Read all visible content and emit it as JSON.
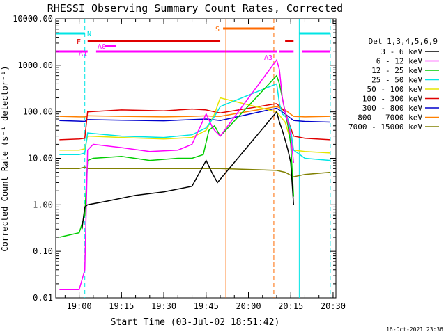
{
  "chart_data": {
    "type": "line",
    "title": "RHESSI Observing Summary Count Rates, Corrected",
    "xlabel": "Start Time (03-Jul-02 18:51:42)",
    "ylabel": "Corrected Count Rate (s⁻¹ detector⁻¹)",
    "y_scale": "log",
    "ylim": [
      0.01,
      10000
    ],
    "xlim": [
      "18:51:42",
      "20:31:00"
    ],
    "y_ticks": [
      "10000.00",
      "1000.00",
      "100.00",
      "10.00",
      "1.00",
      "0.10",
      "0.01"
    ],
    "x_ticks": [
      "19:00",
      "19:15",
      "19:30",
      "19:45",
      "20:00",
      "20:15",
      "20:30"
    ],
    "timestamp": "16-Oct-2021 23:36",
    "legend": {
      "title": "Det 1,3,4,5,6,9",
      "placement": "right",
      "entries": [
        {
          "label": "3 - 6 keV",
          "color": "#000000"
        },
        {
          "label": "6 - 12 keV",
          "color": "#ff00ff"
        },
        {
          "label": "12 - 25 keV",
          "color": "#00cc00"
        },
        {
          "label": "25 - 50 keV",
          "color": "#00e5e5"
        },
        {
          "label": "50 - 100 keV",
          "color": "#e5e500"
        },
        {
          "label": "100 - 300 keV",
          "color": "#e00000"
        },
        {
          "label": "300 - 800 keV",
          "color": "#0000cc"
        },
        {
          "label": "800 - 7000 keV",
          "color": "#ff8000"
        },
        {
          "label": "7000 - 15000 keV",
          "color": "#808000"
        }
      ]
    },
    "flag_bars": [
      {
        "label": "N",
        "color": "#00e5e5",
        "segments": [
          [
            "18:51:42",
            "19:02"
          ],
          [
            "20:18",
            "20:29"
          ]
        ]
      },
      {
        "label": "S",
        "color": "#ff6a00",
        "segments": [
          [
            "19:51",
            "20:09"
          ]
        ]
      },
      {
        "label": "F",
        "color": "#e00000",
        "segments": [
          [
            "19:03",
            "19:50"
          ],
          [
            "20:13",
            "20:16"
          ]
        ]
      },
      {
        "label": "A0",
        "color": "#ff00ff",
        "segments": [
          [
            "19:09",
            "19:13"
          ]
        ]
      },
      {
        "label": "A1",
        "color": "#ff00ff",
        "segments": [
          [
            "18:51:42",
            "19:03"
          ],
          [
            "19:06",
            "20:10"
          ]
        ]
      },
      {
        "label": "A3",
        "color": "#ff00ff",
        "segments": [
          [
            "20:11",
            "20:16"
          ],
          [
            "20:19",
            "20:29"
          ]
        ]
      }
    ],
    "vlines": [
      {
        "time": "19:02",
        "color": "#00e5e5",
        "style": "dashed"
      },
      {
        "time": "19:52",
        "color": "#ff6a00",
        "style": "solid"
      },
      {
        "time": "20:09",
        "color": "#ff6a00",
        "style": "dashed"
      },
      {
        "time": "20:18",
        "color": "#00e5e5",
        "style": "solid"
      },
      {
        "time": "20:29",
        "color": "#00e5e5",
        "style": "dashed"
      }
    ],
    "series": [
      {
        "name": "3 - 6 keV",
        "color": "#000000",
        "x": [
          "19:01",
          "19:02",
          "19:03",
          "19:10",
          "19:20",
          "19:30",
          "19:40",
          "19:45",
          "19:47",
          "19:49",
          "20:10",
          "20:11",
          "20:12",
          "20:13",
          "20:14",
          "20:15",
          "20:16"
        ],
        "y": [
          0.3,
          0.9,
          1.0,
          1.2,
          1.6,
          1.9,
          2.5,
          9.0,
          5.0,
          3.0,
          100,
          60,
          40,
          25,
          15,
          8,
          1.0
        ]
      },
      {
        "name": "6 - 12 keV",
        "color": "#ff00ff",
        "x": [
          "18:53",
          "19:00",
          "19:02",
          "19:03",
          "19:05",
          "19:15",
          "19:25",
          "19:35",
          "19:40",
          "19:45",
          "19:47",
          "19:48",
          "19:50",
          "20:10",
          "20:11",
          "20:12",
          "20:13",
          "20:14",
          "20:15",
          "20:16"
        ],
        "y": [
          0.015,
          0.015,
          0.04,
          15,
          20,
          17,
          14,
          15,
          20,
          90,
          50,
          40,
          30,
          1300,
          800,
          200,
          100,
          60,
          30,
          8
        ]
      },
      {
        "name": "12 - 25 keV",
        "color": "#00cc00",
        "x": [
          "18:53",
          "19:00",
          "19:02",
          "19:03",
          "19:05",
          "19:15",
          "19:25",
          "19:35",
          "19:40",
          "19:44",
          "19:46",
          "19:48",
          "19:50",
          "20:10",
          "20:11",
          "20:12",
          "20:13",
          "20:14",
          "20:15",
          "20:16"
        ],
        "y": [
          0.2,
          0.25,
          0.6,
          9,
          10,
          11,
          9,
          10,
          10,
          12,
          40,
          50,
          30,
          600,
          400,
          200,
          100,
          50,
          20,
          1.5
        ]
      },
      {
        "name": "25 - 50 keV",
        "color": "#00e5e5",
        "x": [
          "18:53",
          "19:00",
          "19:02",
          "19:03",
          "19:15",
          "19:30",
          "19:40",
          "19:45",
          "19:48",
          "19:50",
          "20:10",
          "20:11",
          "20:12",
          "20:13",
          "20:14",
          "20:15",
          "20:16",
          "20:20",
          "20:29"
        ],
        "y": [
          12,
          12,
          13,
          35,
          30,
          28,
          32,
          45,
          80,
          130,
          400,
          150,
          90,
          80,
          70,
          40,
          15,
          10,
          9
        ]
      },
      {
        "name": "50 - 100 keV",
        "color": "#e5e500",
        "x": [
          "18:53",
          "19:00",
          "19:02",
          "19:03",
          "19:15",
          "19:30",
          "19:40",
          "19:45",
          "19:48",
          "19:50",
          "20:10",
          "20:13",
          "20:16",
          "20:20",
          "20:29"
        ],
        "y": [
          15,
          15,
          16,
          30,
          28,
          26,
          28,
          40,
          90,
          200,
          100,
          60,
          15,
          14,
          13
        ]
      },
      {
        "name": "100 - 300 keV",
        "color": "#e00000",
        "x": [
          "18:53",
          "19:00",
          "19:02",
          "19:03",
          "19:15",
          "19:30",
          "19:40",
          "19:45",
          "19:48",
          "19:50",
          "20:10",
          "20:13",
          "20:16",
          "20:20",
          "20:29"
        ],
        "y": [
          25,
          26,
          27,
          100,
          110,
          105,
          115,
          110,
          100,
          95,
          150,
          100,
          30,
          27,
          25
        ]
      },
      {
        "name": "300 - 800 keV",
        "color": "#0000cc",
        "x": [
          "18:53",
          "19:00",
          "19:02",
          "19:03",
          "19:15",
          "19:30",
          "19:40",
          "19:45",
          "19:48",
          "19:50",
          "20:10",
          "20:13",
          "20:16",
          "20:20",
          "20:29"
        ],
        "y": [
          65,
          63,
          62,
          68,
          66,
          64,
          68,
          70,
          67,
          65,
          120,
          90,
          65,
          62,
          60
        ]
      },
      {
        "name": "800 - 7000 keV",
        "color": "#ff8000",
        "x": [
          "18:53",
          "19:00",
          "19:02",
          "19:03",
          "19:15",
          "19:30",
          "19:40",
          "19:45",
          "19:48",
          "19:50",
          "20:10",
          "20:13",
          "20:16",
          "20:20",
          "20:29"
        ],
        "y": [
          80,
          78,
          78,
          82,
          80,
          78,
          80,
          82,
          80,
          80,
          130,
          110,
          80,
          78,
          80
        ]
      },
      {
        "name": "7000 - 15000 keV",
        "color": "#808000",
        "x": [
          "18:53",
          "19:00",
          "19:02",
          "19:03",
          "19:15",
          "19:30",
          "19:40",
          "19:45",
          "19:48",
          "19:50",
          "20:10",
          "20:13",
          "20:16",
          "20:20",
          "20:29"
        ],
        "y": [
          6,
          6,
          6.5,
          6,
          6,
          6,
          6,
          6,
          6,
          6,
          5.5,
          5,
          4,
          4.5,
          5
        ]
      }
    ]
  }
}
